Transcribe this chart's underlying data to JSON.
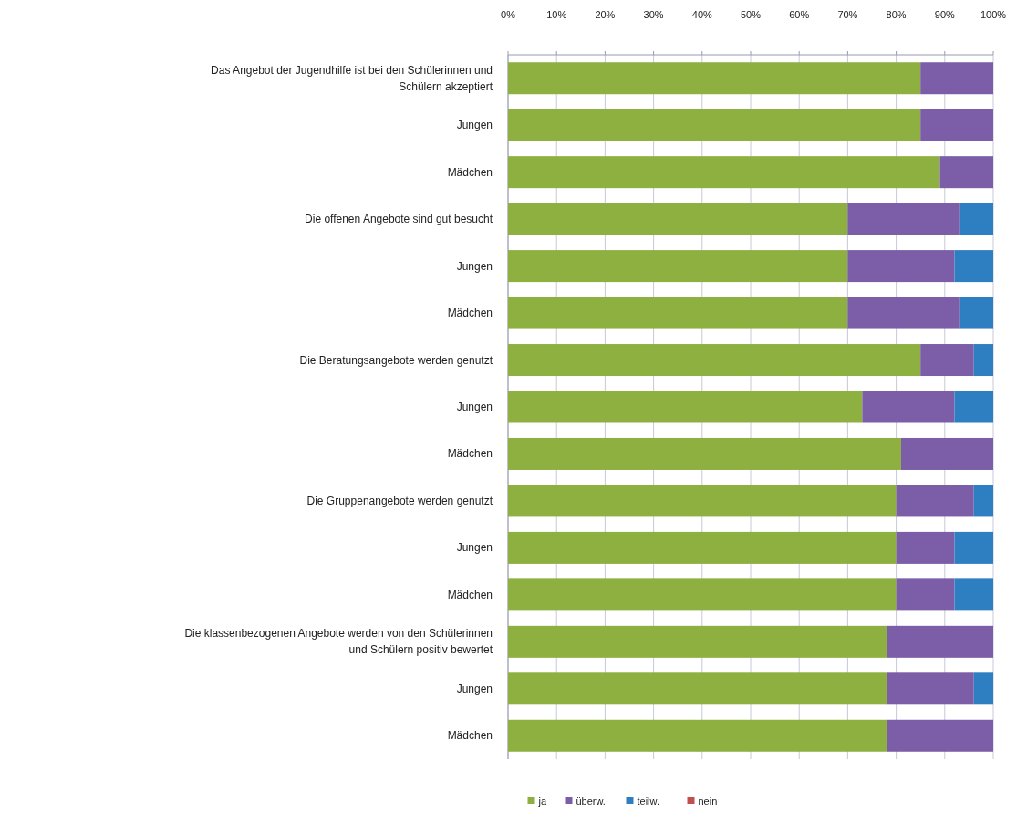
{
  "chart_data": {
    "type": "bar",
    "orientation": "horizontal",
    "stacked": true,
    "categories": [
      "Das Angebot der Jugendhilfe ist bei den Schülerinnen und Schülern akzeptiert",
      "Jungen",
      "Mädchen",
      "Die offenen Angebote sind gut besucht",
      "Jungen",
      "Mädchen",
      "Die Beratungsangebote werden genutzt",
      "Jungen",
      "Mädchen",
      "Die Gruppenangebote werden genutzt",
      "Jungen",
      "Mädchen",
      "Die klassenbezogenen Angebote werden von den Schülerinnen und Schülern positiv bewertet",
      "Jungen",
      "Mädchen"
    ],
    "series": [
      {
        "name": "ja",
        "color": "#8db040",
        "values": [
          85,
          85,
          89,
          70,
          70,
          70,
          85,
          73,
          81,
          80,
          80,
          80,
          78,
          78,
          78
        ]
      },
      {
        "name": "überw.",
        "color": "#7b5ea7",
        "values": [
          15,
          15,
          11,
          23,
          22,
          23,
          11,
          19,
          19,
          16,
          12,
          12,
          22,
          18,
          22
        ]
      },
      {
        "name": "teilw.",
        "color": "#2e7fc1",
        "values": [
          0,
          0,
          0,
          7,
          8,
          7,
          4,
          8,
          0,
          4,
          8,
          8,
          0,
          4,
          0
        ]
      },
      {
        "name": "nein",
        "color": "#c0504d",
        "values": [
          0,
          0,
          0,
          0,
          0,
          0,
          0,
          0,
          0,
          0,
          0,
          0,
          0,
          0,
          0
        ]
      }
    ],
    "xlim": [
      0,
      100
    ],
    "xticks": [
      {
        "value": 0,
        "label": "0%"
      },
      {
        "value": 10,
        "label": "10%"
      },
      {
        "value": 20,
        "label": "20%"
      },
      {
        "value": 30,
        "label": "30%"
      },
      {
        "value": 40,
        "label": "40%"
      },
      {
        "value": 50,
        "label": "50%"
      },
      {
        "value": 60,
        "label": "60%"
      },
      {
        "value": 70,
        "label": "70%"
      },
      {
        "value": 80,
        "label": "80%"
      },
      {
        "value": 90,
        "label": "90%"
      },
      {
        "value": 100,
        "label": "100%"
      }
    ],
    "grid": "x",
    "legend": "bottom"
  }
}
